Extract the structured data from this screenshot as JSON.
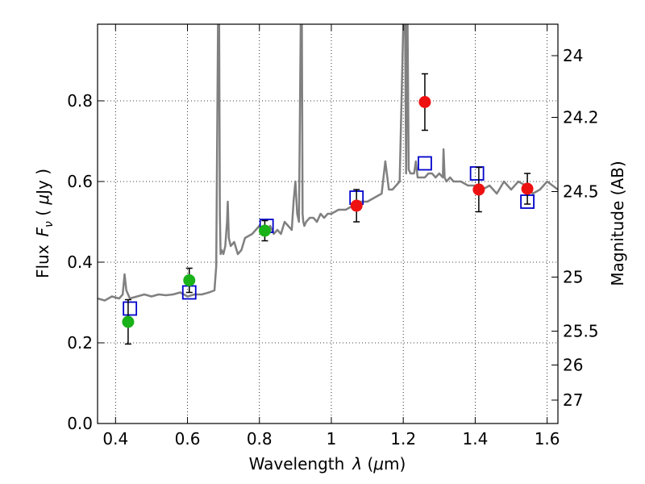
{
  "chart_data": {
    "type": "scatter",
    "xlabel": "Wavelength",
    "xlabel_symbol": "λ",
    "xlabel_unit_open": " (",
    "xlabel_unit_mu": "μ",
    "xlabel_unit_rest": "m)",
    "ylabel": "Flux",
    "ylabel_symbol_F": "F",
    "ylabel_symbol_sub": "ν",
    "ylabel_unit_open": " ( ",
    "ylabel_unit_mu": "μ",
    "ylabel_unit_rest": "Jy )",
    "y2label": "Magnitude (AB)",
    "xlim": [
      0.35,
      1.63
    ],
    "ylim": [
      0.0,
      0.99
    ],
    "grid": true,
    "grid_style": "dotted",
    "x_ticks": [
      0.4,
      0.6,
      0.8,
      1.0,
      1.2,
      1.4,
      1.6
    ],
    "x_tick_labels": [
      "0.4",
      "0.6",
      "0.8",
      "1",
      "1.2",
      "1.4",
      "1.6"
    ],
    "y_ticks": [
      0.0,
      0.2,
      0.4,
      0.6,
      0.8
    ],
    "y_tick_labels": [
      "0.0",
      "0.2",
      "0.4",
      "0.6",
      "0.8"
    ],
    "y2_ticks": [
      {
        "label": "24",
        "flux": 0.912
      },
      {
        "label": "24.2",
        "flux": 0.759
      },
      {
        "label": "24.5",
        "flux": 0.575
      },
      {
        "label": "25",
        "flux": 0.363
      },
      {
        "label": "25.5",
        "flux": 0.229
      },
      {
        "label": "26",
        "flux": 0.145
      },
      {
        "label": "27",
        "flux": 0.058
      }
    ],
    "series": [
      {
        "kind": "line",
        "color": "#808080",
        "x": [
          0.35,
          0.37,
          0.39,
          0.41,
          0.42,
          0.425,
          0.43,
          0.435,
          0.44,
          0.46,
          0.48,
          0.5,
          0.52,
          0.54,
          0.56,
          0.58,
          0.6,
          0.62,
          0.64,
          0.66,
          0.675,
          0.68,
          0.685,
          0.688,
          0.69,
          0.692,
          0.695,
          0.7,
          0.705,
          0.71,
          0.712,
          0.715,
          0.72,
          0.73,
          0.74,
          0.75,
          0.76,
          0.78,
          0.8,
          0.81,
          0.82,
          0.83,
          0.84,
          0.85,
          0.86,
          0.87,
          0.88,
          0.89,
          0.895,
          0.9,
          0.905,
          0.91,
          0.915,
          0.918,
          0.92,
          0.922,
          0.925,
          0.93,
          0.94,
          0.95,
          0.96,
          0.97,
          0.98,
          0.99,
          1.0,
          1.02,
          1.04,
          1.06,
          1.08,
          1.1,
          1.12,
          1.14,
          1.15,
          1.16,
          1.17,
          1.18,
          1.19,
          1.2,
          1.205,
          1.208,
          1.21,
          1.212,
          1.215,
          1.22,
          1.23,
          1.235,
          1.24,
          1.25,
          1.26,
          1.27,
          1.28,
          1.29,
          1.3,
          1.31,
          1.312,
          1.315,
          1.32,
          1.33,
          1.34,
          1.36,
          1.38,
          1.4,
          1.42,
          1.44,
          1.46,
          1.48,
          1.5,
          1.52,
          1.54,
          1.56,
          1.58,
          1.6,
          1.63
        ],
        "y": [
          0.31,
          0.305,
          0.315,
          0.31,
          0.32,
          0.37,
          0.33,
          0.32,
          0.31,
          0.315,
          0.32,
          0.315,
          0.32,
          0.318,
          0.32,
          0.325,
          0.315,
          0.32,
          0.32,
          0.325,
          0.33,
          0.39,
          0.99,
          0.99,
          0.52,
          0.42,
          0.43,
          0.42,
          0.44,
          0.5,
          0.55,
          0.46,
          0.44,
          0.45,
          0.42,
          0.43,
          0.46,
          0.47,
          0.49,
          0.47,
          0.48,
          0.49,
          0.47,
          0.48,
          0.47,
          0.5,
          0.49,
          0.48,
          0.55,
          0.6,
          0.52,
          0.5,
          0.99,
          0.99,
          0.52,
          0.5,
          0.49,
          0.5,
          0.51,
          0.51,
          0.5,
          0.52,
          0.51,
          0.52,
          0.52,
          0.53,
          0.53,
          0.54,
          0.55,
          0.55,
          0.56,
          0.57,
          0.65,
          0.58,
          0.58,
          0.59,
          0.6,
          0.99,
          0.99,
          0.62,
          0.99,
          0.99,
          0.63,
          0.62,
          0.62,
          0.65,
          0.61,
          0.61,
          0.61,
          0.62,
          0.62,
          0.61,
          0.62,
          0.61,
          0.68,
          0.61,
          0.6,
          0.61,
          0.6,
          0.6,
          0.59,
          0.59,
          0.58,
          0.59,
          0.57,
          0.6,
          0.58,
          0.6,
          0.59,
          0.57,
          0.58,
          0.6,
          0.58
        ]
      },
      {
        "kind": "open-square",
        "color": "#0000cc",
        "x": [
          0.44,
          0.605,
          0.82,
          1.07,
          1.26,
          1.405,
          1.545
        ],
        "y": [
          0.285,
          0.325,
          0.49,
          0.56,
          0.645,
          0.62,
          0.55
        ]
      },
      {
        "kind": "filled-circle",
        "color": "#19b219",
        "x": [
          0.435,
          0.605,
          0.815
        ],
        "y": [
          0.252,
          0.355,
          0.478
        ],
        "err": [
          0.055,
          0.03,
          0.025
        ]
      },
      {
        "kind": "filled-circle",
        "color": "#ee1111",
        "x": [
          1.07,
          1.26,
          1.41,
          1.545
        ],
        "y": [
          0.54,
          0.797,
          0.58,
          0.582
        ],
        "err": [
          0.04,
          0.07,
          0.055,
          0.038
        ]
      }
    ]
  }
}
